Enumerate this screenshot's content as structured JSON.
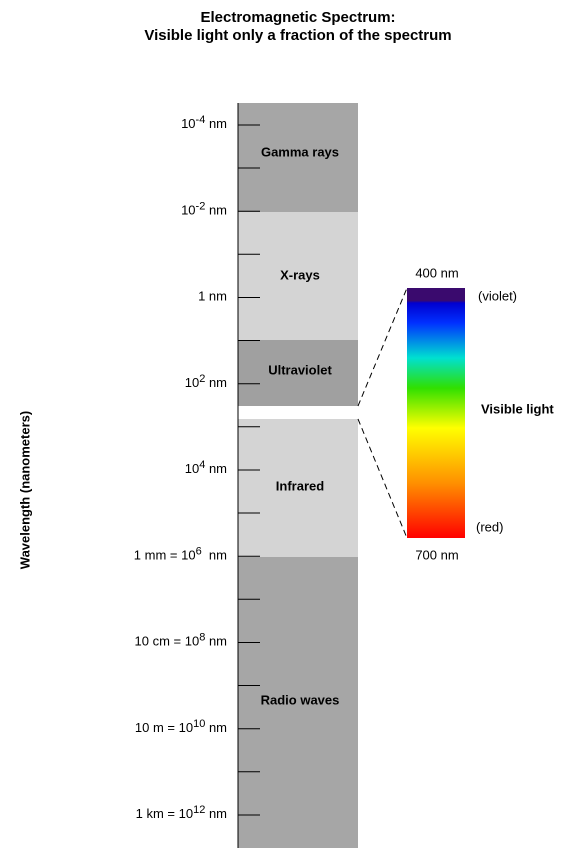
{
  "header": {
    "title_line1": "Electromagnetic Spectrum:",
    "title_line2": "Visible light only a fraction of the spectrum"
  },
  "axis_label": "Wavelength (nanometers)",
  "ticks": [
    {
      "text": "10",
      "sup": "-4",
      "after": " nm"
    },
    {
      "text": "10",
      "sup": "-2",
      "after": " nm"
    },
    {
      "text": "1 nm"
    },
    {
      "text": "10",
      "sup": "2",
      "after": " nm"
    },
    {
      "text": "10",
      "sup": "4",
      "after": " nm"
    },
    {
      "text": "1 mm = 10",
      "sup": "6",
      "after": "  nm"
    },
    {
      "text": "10 cm = 10",
      "sup": "8",
      "after": " nm"
    },
    {
      "text": "10 m = 10",
      "sup": "10",
      "after": " nm"
    },
    {
      "text": "1 km = 10",
      "sup": "12",
      "after": " nm"
    }
  ],
  "bands": [
    {
      "label": "Gamma rays"
    },
    {
      "label": "X-rays"
    },
    {
      "label": "Ultraviolet"
    },
    {
      "label": "Infrared"
    },
    {
      "label": "Radio waves"
    }
  ],
  "visible": {
    "top": "400 nm",
    "bottom": "700 nm",
    "violet": "(violet)",
    "red": "(red)",
    "label": "Visible light"
  }
}
